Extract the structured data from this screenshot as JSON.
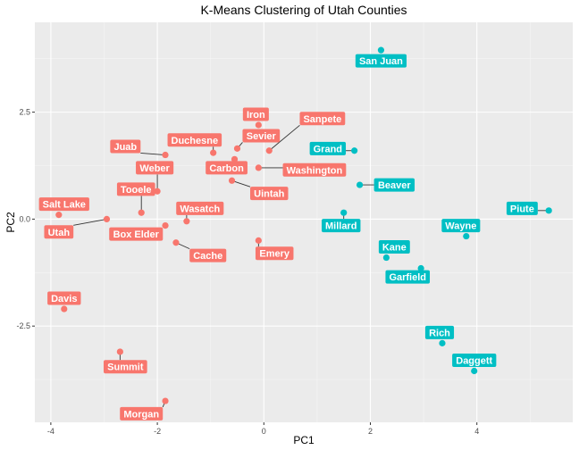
{
  "chart_data": {
    "type": "scatter",
    "title": "K-Means Clustering of Utah Counties",
    "xlabel": "PC1",
    "ylabel": "PC2",
    "xlim": [
      -4.3,
      5.8
    ],
    "ylim": [
      -4.75,
      4.6
    ],
    "xticks": [
      -4,
      -2,
      0,
      2,
      4
    ],
    "xtick_labels": [
      "-4",
      "-2",
      "0",
      "2",
      "4"
    ],
    "yticks": [
      -2.5,
      0,
      2.5
    ],
    "ytick_labels": [
      "-2.5",
      "0.0",
      "2.5"
    ],
    "grid": true,
    "legend": "none",
    "colors": {
      "cluster_red": "#F8766D",
      "cluster_teal": "#00BFC4",
      "panel_bg": "#EBEBEB",
      "grid_major": "#FFFFFF"
    },
    "points": [
      {
        "name": "Salt Lake",
        "x": -3.85,
        "y": 0.1,
        "cluster": 1,
        "lx": -3.75,
        "ly": 0.35
      },
      {
        "name": "Utah",
        "x": -2.95,
        "y": 0.0,
        "cluster": 1,
        "lx": -3.85,
        "ly": -0.3
      },
      {
        "name": "Davis",
        "x": -3.75,
        "y": -2.1,
        "cluster": 1,
        "lx": -3.75,
        "ly": -1.85
      },
      {
        "name": "Summit",
        "x": -2.7,
        "y": -3.1,
        "cluster": 1,
        "lx": -2.6,
        "ly": -3.45
      },
      {
        "name": "Morgan",
        "x": -1.85,
        "y": -4.25,
        "cluster": 1,
        "lx": -2.3,
        "ly": -4.55
      },
      {
        "name": "Tooele",
        "x": -2.3,
        "y": 0.15,
        "cluster": 1,
        "lx": -2.4,
        "ly": 0.7
      },
      {
        "name": "Weber",
        "x": -2.0,
        "y": 0.65,
        "cluster": 1,
        "lx": -2.05,
        "ly": 1.2
      },
      {
        "name": "Juab",
        "x": -1.85,
        "y": 1.5,
        "cluster": 1,
        "lx": -2.6,
        "ly": 1.7
      },
      {
        "name": "Box Elder",
        "x": -1.85,
        "y": -0.15,
        "cluster": 1,
        "lx": -2.4,
        "ly": -0.35
      },
      {
        "name": "Wasatch",
        "x": -1.45,
        "y": -0.05,
        "cluster": 1,
        "lx": -1.2,
        "ly": 0.25
      },
      {
        "name": "Cache",
        "x": -1.65,
        "y": -0.55,
        "cluster": 1,
        "lx": -1.05,
        "ly": -0.85
      },
      {
        "name": "Duchesne",
        "x": -0.95,
        "y": 1.55,
        "cluster": 1,
        "lx": -1.3,
        "ly": 1.85
      },
      {
        "name": "Carbon",
        "x": -0.55,
        "y": 1.4,
        "cluster": 1,
        "lx": -0.7,
        "ly": 1.2
      },
      {
        "name": "Sevier",
        "x": -0.5,
        "y": 1.65,
        "cluster": 1,
        "lx": -0.05,
        "ly": 1.95
      },
      {
        "name": "Iron",
        "x": -0.1,
        "y": 2.2,
        "cluster": 1,
        "lx": -0.15,
        "ly": 2.45
      },
      {
        "name": "Sanpete",
        "x": 0.1,
        "y": 1.6,
        "cluster": 1,
        "lx": 1.1,
        "ly": 2.35
      },
      {
        "name": "Washington",
        "x": -0.1,
        "y": 1.2,
        "cluster": 1,
        "lx": 0.95,
        "ly": 1.15
      },
      {
        "name": "Uintah",
        "x": -0.6,
        "y": 0.9,
        "cluster": 1,
        "lx": 0.1,
        "ly": 0.6
      },
      {
        "name": "Emery",
        "x": -0.1,
        "y": -0.5,
        "cluster": 1,
        "lx": 0.2,
        "ly": -0.8
      },
      {
        "name": "San Juan",
        "x": 2.2,
        "y": 3.95,
        "cluster": 2,
        "lx": 2.2,
        "ly": 3.7
      },
      {
        "name": "Grand",
        "x": 1.7,
        "y": 1.6,
        "cluster": 2,
        "lx": 1.2,
        "ly": 1.65
      },
      {
        "name": "Beaver",
        "x": 1.8,
        "y": 0.8,
        "cluster": 2,
        "lx": 2.45,
        "ly": 0.8
      },
      {
        "name": "Millard",
        "x": 1.5,
        "y": 0.15,
        "cluster": 2,
        "lx": 1.45,
        "ly": -0.15
      },
      {
        "name": "Piute",
        "x": 5.35,
        "y": 0.2,
        "cluster": 2,
        "lx": 4.85,
        "ly": 0.25
      },
      {
        "name": "Wayne",
        "x": 3.8,
        "y": -0.4,
        "cluster": 2,
        "lx": 3.7,
        "ly": -0.15
      },
      {
        "name": "Kane",
        "x": 2.3,
        "y": -0.9,
        "cluster": 2,
        "lx": 2.45,
        "ly": -0.65
      },
      {
        "name": "Garfield",
        "x": 2.95,
        "y": -1.15,
        "cluster": 2,
        "lx": 2.7,
        "ly": -1.35
      },
      {
        "name": "Rich",
        "x": 3.35,
        "y": -2.9,
        "cluster": 2,
        "lx": 3.3,
        "ly": -2.65
      },
      {
        "name": "Daggett",
        "x": 3.95,
        "y": -3.55,
        "cluster": 2,
        "lx": 3.95,
        "ly": -3.3
      }
    ]
  }
}
